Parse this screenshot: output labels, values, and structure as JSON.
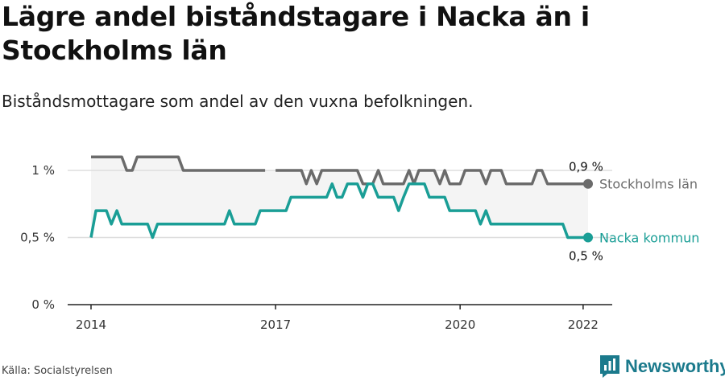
{
  "title": "Lägre andel biståndstagare i Nacka än i Stockholms län",
  "subtitle": "Biståndsmottagare som andel av den vuxna befolkningen.",
  "source": "Källa: Socialstyrelsen",
  "brand": {
    "name": "Newsworthy",
    "icon": "newsworthy-logo-icon",
    "color": "#1b7a8c"
  },
  "chart_data": {
    "type": "line",
    "x_ticks": [
      2014,
      2017,
      2020,
      2022
    ],
    "y_ticks": [
      0,
      0.5,
      1
    ],
    "y_tick_labels": [
      "0 %",
      "0,5 %",
      "1 %"
    ],
    "xlim": [
      2014,
      2022.08
    ],
    "ylim": [
      0,
      1
    ],
    "grid": true,
    "band_between_series": true,
    "series": [
      {
        "name": "Stockholms län",
        "color": "#6b6b6b",
        "end_label": "0,9 %",
        "points": [
          [
            2014,
            1.1
          ],
          [
            2014.5,
            1.1
          ],
          [
            2014.58,
            1.0
          ],
          [
            2014.67,
            1.0
          ],
          [
            2014.75,
            1.1
          ],
          [
            2015.42,
            1.1
          ],
          [
            2015.5,
            1.0
          ],
          [
            2016.83,
            1.0
          ],
          [
            null,
            null
          ],
          [
            2017,
            1.0
          ],
          [
            2017.42,
            1.0
          ],
          [
            2017.5,
            0.9
          ],
          [
            2017.58,
            1.0
          ],
          [
            2017.67,
            0.9
          ],
          [
            2017.75,
            1.0
          ],
          [
            2018.33,
            1.0
          ],
          [
            2018.42,
            0.9
          ],
          [
            2018.58,
            0.9
          ],
          [
            2018.67,
            1.0
          ],
          [
            2018.75,
            0.9
          ],
          [
            2019.08,
            0.9
          ],
          [
            2019.17,
            1.0
          ],
          [
            2019.25,
            0.9
          ],
          [
            2019.33,
            1.0
          ],
          [
            2019.58,
            1.0
          ],
          [
            2019.67,
            0.9
          ],
          [
            2019.75,
            1.0
          ],
          [
            2019.83,
            0.9
          ],
          [
            2020,
            0.9
          ],
          [
            2020.08,
            1.0
          ],
          [
            2020.33,
            1.0
          ],
          [
            2020.42,
            0.9
          ],
          [
            2020.5,
            1.0
          ],
          [
            2020.67,
            1.0
          ],
          [
            2020.75,
            0.9
          ],
          [
            2021.17,
            0.9
          ],
          [
            2021.25,
            1.0
          ],
          [
            2021.33,
            1.0
          ],
          [
            2021.42,
            0.9
          ],
          [
            2022.08,
            0.9
          ]
        ]
      },
      {
        "name": "Nacka kommun",
        "color": "#1a9e96",
        "end_label": "0,5 %",
        "points": [
          [
            2014,
            0.5
          ],
          [
            2014.08,
            0.7
          ],
          [
            2014.25,
            0.7
          ],
          [
            2014.33,
            0.6
          ],
          [
            2014.42,
            0.7
          ],
          [
            2014.5,
            0.6
          ],
          [
            2014.92,
            0.6
          ],
          [
            2015,
            0.5
          ],
          [
            2015.08,
            0.6
          ],
          [
            2016.17,
            0.6
          ],
          [
            2016.25,
            0.7
          ],
          [
            2016.33,
            0.6
          ],
          [
            2016.67,
            0.6
          ],
          [
            2016.75,
            0.7
          ],
          [
            2017.17,
            0.7
          ],
          [
            2017.25,
            0.8
          ],
          [
            2017.83,
            0.8
          ],
          [
            2017.92,
            0.9
          ],
          [
            2018,
            0.8
          ],
          [
            2018.08,
            0.8
          ],
          [
            2018.17,
            0.9
          ],
          [
            2018.33,
            0.9
          ],
          [
            2018.42,
            0.8
          ],
          [
            2018.5,
            0.9
          ],
          [
            2018.58,
            0.9
          ],
          [
            2018.67,
            0.8
          ],
          [
            2018.92,
            0.8
          ],
          [
            2019,
            0.7
          ],
          [
            2019.08,
            0.8
          ],
          [
            2019.17,
            0.9
          ],
          [
            2019.42,
            0.9
          ],
          [
            2019.5,
            0.8
          ],
          [
            2019.75,
            0.8
          ],
          [
            2019.83,
            0.7
          ],
          [
            2020.25,
            0.7
          ],
          [
            2020.33,
            0.6
          ],
          [
            2020.42,
            0.7
          ],
          [
            2020.5,
            0.6
          ],
          [
            2021.67,
            0.6
          ],
          [
            2021.75,
            0.5
          ],
          [
            2022.08,
            0.5
          ]
        ]
      }
    ]
  }
}
